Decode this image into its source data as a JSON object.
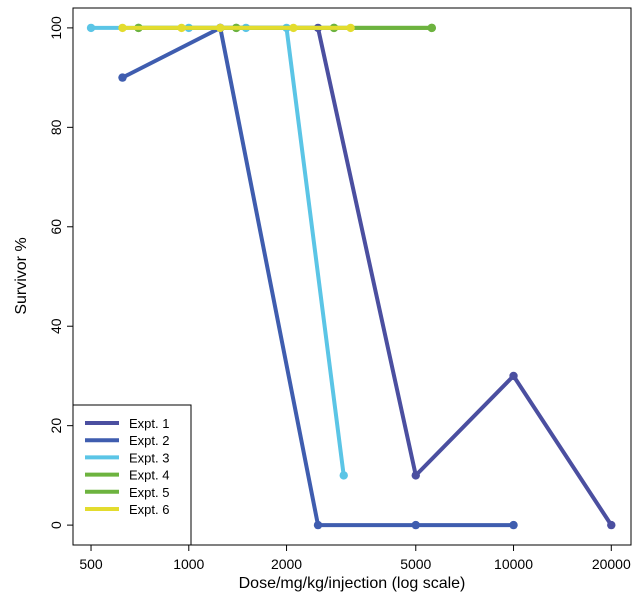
{
  "chart_data": {
    "type": "line",
    "title": "",
    "xlabel": "Dose/mg/kg/injection (log scale)",
    "ylabel": "Survivor %",
    "x_scale": "log",
    "xlim": [
      440,
      23000
    ],
    "ylim": [
      -4,
      104
    ],
    "x_ticks": [
      500,
      1000,
      2000,
      5000,
      10000,
      20000
    ],
    "x_tick_labels": [
      "500",
      "1000",
      "2000",
      "5000",
      "10000",
      "20000"
    ],
    "y_ticks": [
      0,
      20,
      40,
      60,
      80,
      100
    ],
    "y_tick_labels": [
      "0",
      "20",
      "40",
      "60",
      "80",
      "100"
    ],
    "grid": false,
    "legend_position": "bottom-left",
    "series": [
      {
        "name": "Expt. 1",
        "color": "#4B4FA0",
        "x": [
          1250,
          2500,
          5000,
          10000,
          20000
        ],
        "y": [
          100,
          100,
          10,
          30,
          0
        ]
      },
      {
        "name": "Expt. 2",
        "color": "#3F5DAF",
        "x": [
          625,
          1250,
          2500,
          5000,
          10000
        ],
        "y": [
          90,
          100,
          0,
          0,
          0
        ]
      },
      {
        "name": "Expt. 3",
        "color": "#5BC5E6",
        "x": [
          500,
          1000,
          1500,
          2000,
          3000
        ],
        "y": [
          100,
          100,
          100,
          100,
          10
        ]
      },
      {
        "name": "Expt. 4",
        "color": "#6DB33F",
        "x": [
          700,
          1400,
          2800,
          5600
        ],
        "y": [
          100,
          100,
          100,
          100
        ]
      },
      {
        "name": "Expt. 5",
        "color": "#6DB33F",
        "x": [
          700,
          1400,
          2800,
          5600
        ],
        "y": [
          100,
          100,
          100,
          100
        ]
      },
      {
        "name": "Expt. 6",
        "color": "#E3DC2E",
        "x": [
          625,
          950,
          1250,
          2100,
          3150
        ],
        "y": [
          100,
          100,
          100,
          100,
          100
        ]
      }
    ]
  }
}
